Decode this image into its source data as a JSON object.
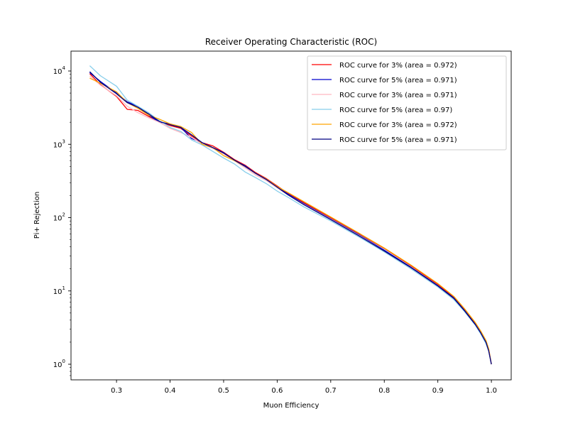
{
  "chart_data": {
    "type": "line",
    "title": "Receiver Operating Characteristic (ROC)",
    "xlabel": "Muon Efficiency",
    "ylabel": "Pi+ Rejection",
    "xlim": [
      0.215,
      1.037
    ],
    "ylim_log10": [
      -0.18,
      0.3
    ],
    "y_scale": "log",
    "x_ticks": [
      0.3,
      0.4,
      0.5,
      0.6,
      0.7,
      0.8,
      0.9,
      1.0
    ],
    "x_tick_labels": [
      "0.3",
      "0.4",
      "0.5",
      "0.6",
      "0.7",
      "0.8",
      "0.9",
      "1.0"
    ],
    "y_ticks_exp": [
      0,
      1,
      2,
      3,
      4
    ],
    "y_tick_base": "10",
    "grid": false,
    "legend_position": "top-right",
    "series": [
      {
        "name": "ROC curve for 3% (area = 0.972)",
        "color": "#ff0000",
        "points": [
          [
            0.25,
            9200
          ],
          [
            0.27,
            6500
          ],
          [
            0.3,
            4500
          ],
          [
            0.32,
            3000
          ],
          [
            0.34,
            2900
          ],
          [
            0.36,
            2400
          ],
          [
            0.38,
            2050
          ],
          [
            0.4,
            1800
          ],
          [
            0.42,
            1650
          ],
          [
            0.44,
            1300
          ],
          [
            0.46,
            1050
          ],
          [
            0.48,
            950
          ],
          [
            0.5,
            780
          ],
          [
            0.52,
            620
          ],
          [
            0.54,
            520
          ],
          [
            0.56,
            410
          ],
          [
            0.58,
            340
          ],
          [
            0.6,
            270
          ],
          [
            0.62,
            215
          ],
          [
            0.65,
            160
          ],
          [
            0.7,
            100
          ],
          [
            0.75,
            62
          ],
          [
            0.8,
            38
          ],
          [
            0.85,
            22
          ],
          [
            0.9,
            12.3
          ],
          [
            0.93,
            8.2
          ],
          [
            0.95,
            5.6
          ],
          [
            0.97,
            3.6
          ],
          [
            0.98,
            2.8
          ],
          [
            0.99,
            2.05
          ],
          [
            0.995,
            1.6
          ],
          [
            1.0,
            1.0
          ]
        ]
      },
      {
        "name": "ROC curve for 5% (area = 0.971)",
        "color": "#0000cd",
        "points": [
          [
            0.25,
            9500
          ],
          [
            0.27,
            7200
          ],
          [
            0.3,
            5000
          ],
          [
            0.32,
            3800
          ],
          [
            0.34,
            3300
          ],
          [
            0.36,
            2500
          ],
          [
            0.38,
            2000
          ],
          [
            0.4,
            1900
          ],
          [
            0.42,
            1700
          ],
          [
            0.44,
            1200
          ],
          [
            0.46,
            1050
          ],
          [
            0.48,
            900
          ],
          [
            0.5,
            770
          ],
          [
            0.52,
            600
          ],
          [
            0.54,
            510
          ],
          [
            0.56,
            400
          ],
          [
            0.58,
            330
          ],
          [
            0.6,
            260
          ],
          [
            0.62,
            210
          ],
          [
            0.65,
            155
          ],
          [
            0.7,
            96
          ],
          [
            0.75,
            60
          ],
          [
            0.8,
            36
          ],
          [
            0.85,
            21
          ],
          [
            0.9,
            11.8
          ],
          [
            0.93,
            8.0
          ],
          [
            0.95,
            5.4
          ],
          [
            0.97,
            3.5
          ],
          [
            0.98,
            2.7
          ],
          [
            0.99,
            2.0
          ],
          [
            0.995,
            1.55
          ],
          [
            1.0,
            1.0
          ]
        ]
      },
      {
        "name": "ROC curve for 3% (area = 0.971)",
        "color": "#ffb6c1",
        "points": [
          [
            0.25,
            8600
          ],
          [
            0.27,
            6400
          ],
          [
            0.3,
            4600
          ],
          [
            0.32,
            3300
          ],
          [
            0.34,
            2700
          ],
          [
            0.36,
            2300
          ],
          [
            0.38,
            2000
          ],
          [
            0.4,
            1650
          ],
          [
            0.42,
            1450
          ],
          [
            0.44,
            1250
          ],
          [
            0.46,
            1000
          ],
          [
            0.48,
            880
          ],
          [
            0.5,
            740
          ],
          [
            0.52,
            600
          ],
          [
            0.54,
            480
          ],
          [
            0.56,
            380
          ],
          [
            0.58,
            320
          ],
          [
            0.6,
            255
          ],
          [
            0.62,
            205
          ],
          [
            0.65,
            152
          ],
          [
            0.7,
            95
          ],
          [
            0.75,
            59
          ],
          [
            0.8,
            35
          ],
          [
            0.85,
            20.5
          ],
          [
            0.9,
            11.6
          ],
          [
            0.93,
            7.8
          ],
          [
            0.95,
            5.3
          ],
          [
            0.97,
            3.45
          ],
          [
            0.98,
            2.65
          ],
          [
            0.99,
            1.95
          ],
          [
            0.995,
            1.5
          ],
          [
            1.0,
            1.0
          ]
        ]
      },
      {
        "name": "ROC curve for 5% (area = 0.97)",
        "color": "#87ceeb",
        "points": [
          [
            0.25,
            11800
          ],
          [
            0.27,
            8600
          ],
          [
            0.3,
            6200
          ],
          [
            0.32,
            4000
          ],
          [
            0.34,
            3300
          ],
          [
            0.36,
            2700
          ],
          [
            0.38,
            2100
          ],
          [
            0.4,
            1700
          ],
          [
            0.42,
            1500
          ],
          [
            0.44,
            1150
          ],
          [
            0.46,
            980
          ],
          [
            0.48,
            800
          ],
          [
            0.5,
            650
          ],
          [
            0.52,
            540
          ],
          [
            0.54,
            420
          ],
          [
            0.56,
            350
          ],
          [
            0.58,
            290
          ],
          [
            0.6,
            230
          ],
          [
            0.62,
            190
          ],
          [
            0.65,
            140
          ],
          [
            0.7,
            90
          ],
          [
            0.75,
            56
          ],
          [
            0.8,
            34
          ],
          [
            0.85,
            20
          ],
          [
            0.9,
            11.3
          ],
          [
            0.93,
            7.6
          ],
          [
            0.95,
            5.2
          ],
          [
            0.97,
            3.4
          ],
          [
            0.98,
            2.6
          ],
          [
            0.99,
            1.9
          ],
          [
            0.995,
            1.5
          ],
          [
            1.0,
            1.0
          ]
        ]
      },
      {
        "name": "ROC curve for 3% (area = 0.972)",
        "color": "#ffa500",
        "points": [
          [
            0.25,
            8000
          ],
          [
            0.27,
            6800
          ],
          [
            0.3,
            5200
          ],
          [
            0.32,
            3700
          ],
          [
            0.34,
            3100
          ],
          [
            0.36,
            2500
          ],
          [
            0.38,
            2200
          ],
          [
            0.4,
            1900
          ],
          [
            0.42,
            1750
          ],
          [
            0.44,
            1450
          ],
          [
            0.46,
            1000
          ],
          [
            0.48,
            900
          ],
          [
            0.5,
            700
          ],
          [
            0.52,
            600
          ],
          [
            0.54,
            500
          ],
          [
            0.56,
            400
          ],
          [
            0.58,
            335
          ],
          [
            0.6,
            265
          ],
          [
            0.62,
            220
          ],
          [
            0.65,
            165
          ],
          [
            0.7,
            102
          ],
          [
            0.75,
            63
          ],
          [
            0.8,
            38.5
          ],
          [
            0.85,
            22.5
          ],
          [
            0.9,
            12.6
          ],
          [
            0.93,
            8.4
          ],
          [
            0.95,
            5.7
          ],
          [
            0.97,
            3.7
          ],
          [
            0.98,
            2.85
          ],
          [
            0.99,
            2.1
          ],
          [
            0.995,
            1.62
          ],
          [
            1.0,
            1.0
          ]
        ]
      },
      {
        "name": "ROC curve for 5% (area = 0.971)",
        "color": "#000080",
        "points": [
          [
            0.25,
            9800
          ],
          [
            0.27,
            7000
          ],
          [
            0.3,
            4900
          ],
          [
            0.32,
            3700
          ],
          [
            0.34,
            3200
          ],
          [
            0.36,
            2600
          ],
          [
            0.38,
            2050
          ],
          [
            0.4,
            1850
          ],
          [
            0.42,
            1700
          ],
          [
            0.44,
            1350
          ],
          [
            0.46,
            1050
          ],
          [
            0.48,
            900
          ],
          [
            0.5,
            760
          ],
          [
            0.52,
            610
          ],
          [
            0.54,
            500
          ],
          [
            0.56,
            400
          ],
          [
            0.58,
            330
          ],
          [
            0.6,
            260
          ],
          [
            0.62,
            205
          ],
          [
            0.65,
            150
          ],
          [
            0.7,
            94
          ],
          [
            0.75,
            58
          ],
          [
            0.8,
            35
          ],
          [
            0.85,
            20.8
          ],
          [
            0.9,
            11.7
          ],
          [
            0.93,
            7.9
          ],
          [
            0.95,
            5.35
          ],
          [
            0.97,
            3.48
          ],
          [
            0.98,
            2.68
          ],
          [
            0.99,
            1.98
          ],
          [
            0.995,
            1.52
          ],
          [
            1.0,
            1.0
          ]
        ]
      }
    ]
  }
}
